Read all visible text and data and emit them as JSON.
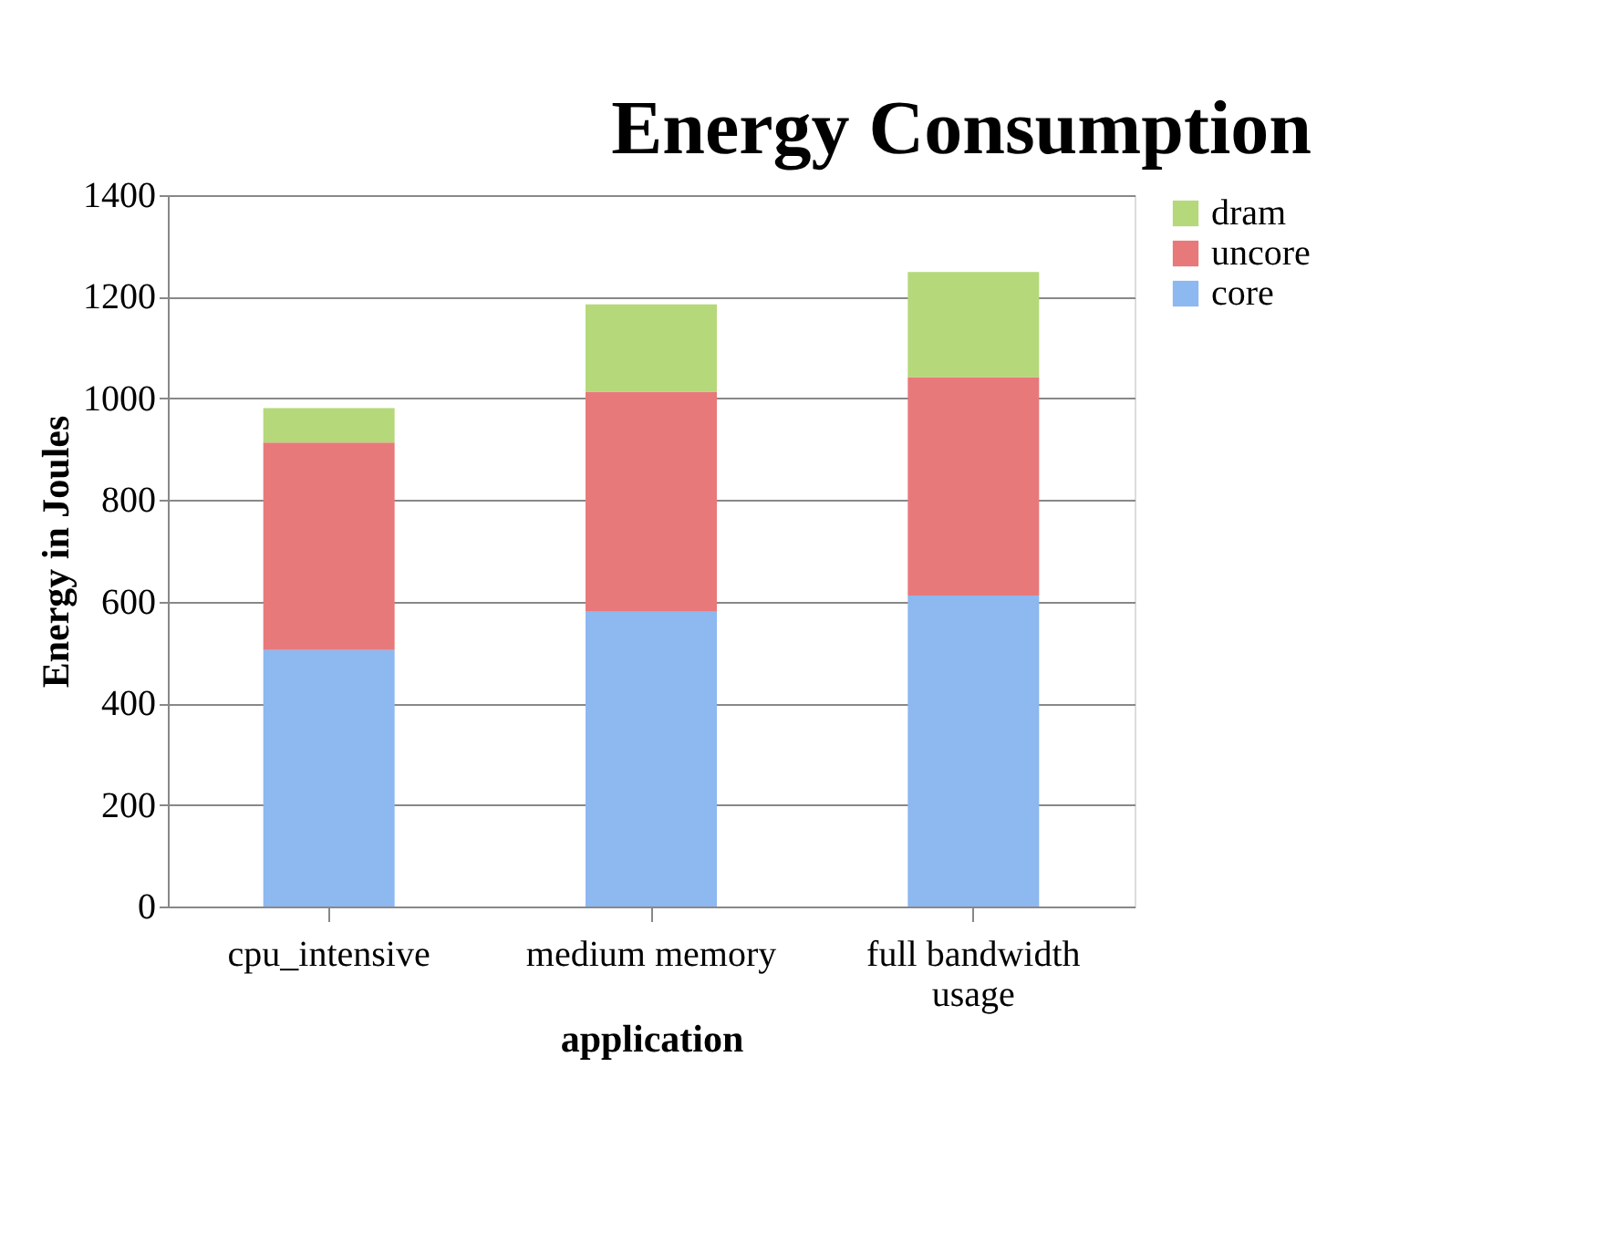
{
  "chart_data": {
    "type": "bar",
    "title": "Energy Consumption",
    "xlabel": "application",
    "ylabel": "Energy in Joules",
    "categories": [
      "cpu_intensive",
      "medium memory",
      "full bandwidth usage"
    ],
    "stacked": true,
    "series": [
      {
        "name": "core",
        "color": "#8db8f0",
        "values": [
          505,
          580,
          612
        ]
      },
      {
        "name": "uncore",
        "color": "#e8797b",
        "values": [
          408,
          433,
          430
        ]
      },
      {
        "name": "dram",
        "color": "#b5d87a",
        "values": [
          68,
          172,
          207
        ]
      }
    ],
    "ylim": [
      0,
      1400
    ],
    "yticks": [
      0,
      200,
      400,
      600,
      800,
      1000,
      1200,
      1400
    ],
    "grid": "y",
    "legend": "right"
  }
}
